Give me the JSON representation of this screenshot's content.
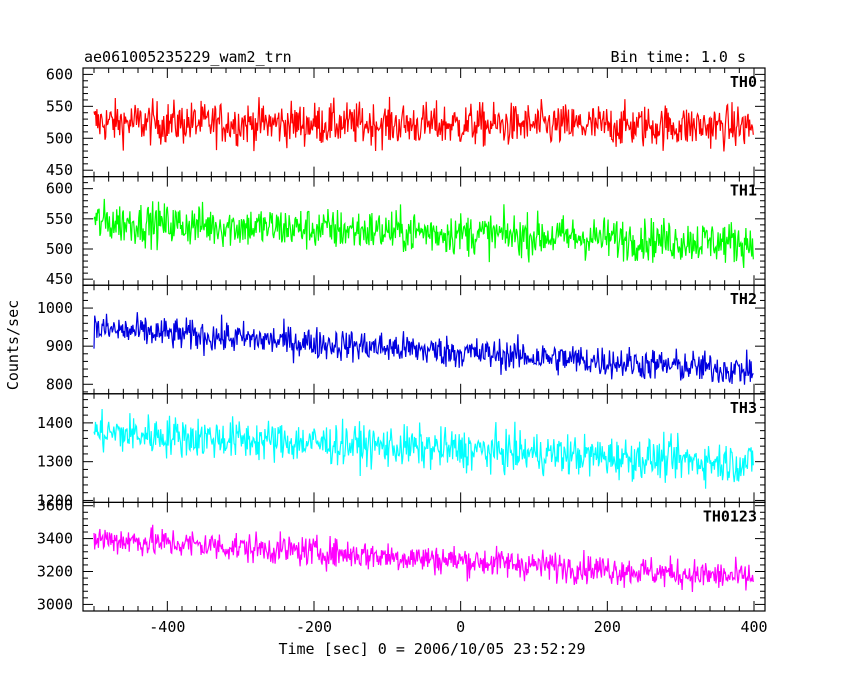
{
  "header": {
    "title": "ae061005235229_wam2_trn",
    "bin_time": "Bin time: 1.0 s"
  },
  "chart_data": {
    "type": "line",
    "title": "ae061005235229_wam2_trn",
    "xlabel": "Time [sec] 0 = 2006/10/05 23:52:29",
    "ylabel": "Counts/sec",
    "xlim": [
      -515,
      415
    ],
    "x_ticks": [
      "-400",
      "-200",
      "0",
      "200",
      "400"
    ],
    "x_tick_values": [
      -400,
      -200,
      0,
      200,
      400
    ],
    "bin_time_s": 1.0,
    "x_range_data": [
      -500,
      399
    ],
    "panels": [
      {
        "name": "TH0",
        "color": "#ff0000",
        "ylim": [
          440,
          610
        ],
        "y_ticks": [
          "450",
          "500",
          "550",
          "600"
        ],
        "y_tick_values": [
          450,
          500,
          550,
          600
        ],
        "mean_start": 525,
        "mean_end": 518,
        "noise": 24
      },
      {
        "name": "TH1",
        "color": "#00ff00",
        "ylim": [
          440,
          620
        ],
        "y_ticks": [
          "450",
          "500",
          "550",
          "600"
        ],
        "y_tick_values": [
          450,
          500,
          550,
          600
        ],
        "mean_start": 545,
        "mean_end": 510,
        "noise": 25
      },
      {
        "name": "TH2",
        "color": "#0000e0",
        "ylim": [
          775,
          1060
        ],
        "y_ticks": [
          "800",
          "900",
          "1000"
        ],
        "y_tick_values": [
          800,
          900,
          1000
        ],
        "mean_start": 945,
        "mean_end": 835,
        "noise": 30
      },
      {
        "name": "TH3",
        "color": "#00ffff",
        "ylim": [
          1195,
          1475
        ],
        "y_ticks": [
          "1200",
          "1300",
          "1400"
        ],
        "y_tick_values": [
          1200,
          1300,
          1400
        ],
        "mean_start": 1375,
        "mean_end": 1295,
        "noise": 38
      },
      {
        "name": "TH0123",
        "color": "#ff00ff",
        "ylim": [
          2960,
          3620
        ],
        "y_ticks": [
          "3000",
          "3200",
          "3400",
          "3600"
        ],
        "y_tick_values": [
          3000,
          3200,
          3400,
          3600
        ],
        "mean_start": 3400,
        "mean_end": 3160,
        "noise": 65
      }
    ]
  }
}
